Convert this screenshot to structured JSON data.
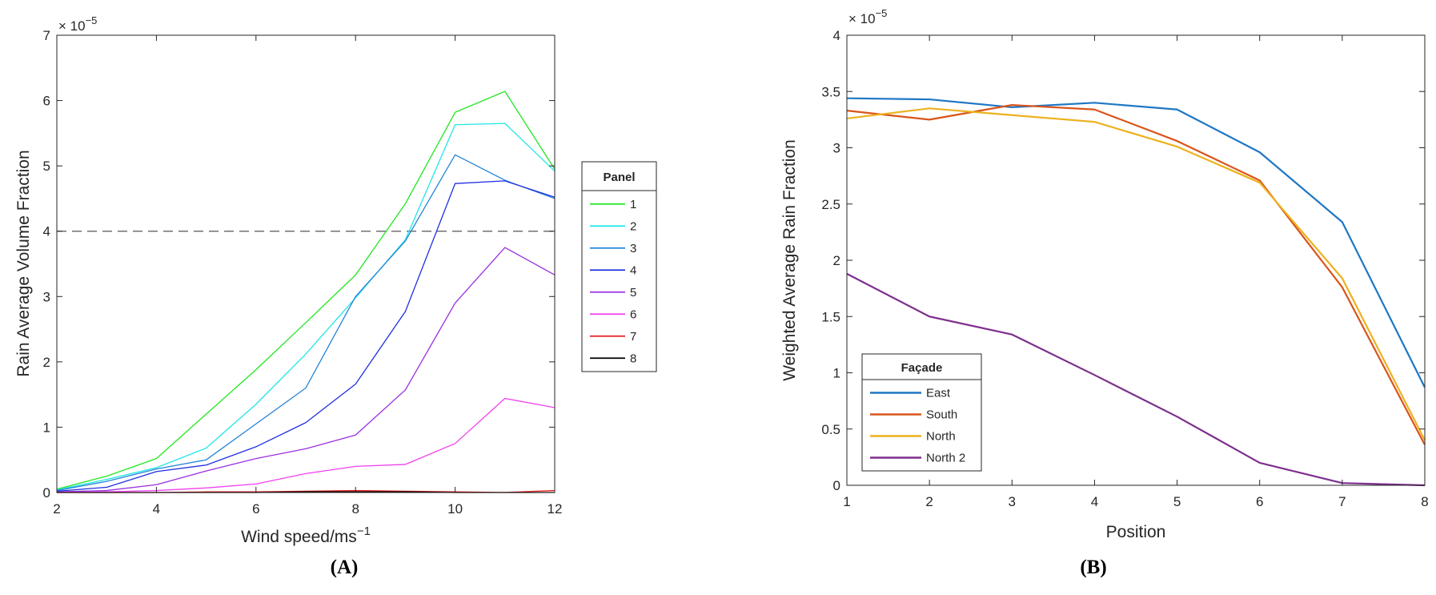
{
  "chart_data": [
    {
      "type": "line",
      "panel_label": "(A)",
      "xlabel": "Wind speed/ms",
      "xlabel_sup": "−1",
      "ylabel": "Rain Average Volume Fraction",
      "exponent_label": "× 10",
      "exponent_sup": "−5",
      "xlim": [
        2,
        12
      ],
      "ylim": [
        0,
        7
      ],
      "xticks": [
        "2",
        "4",
        "6",
        "8",
        "10",
        "12"
      ],
      "yticks": [
        "0",
        "1",
        "2",
        "3",
        "4",
        "5",
        "6",
        "7"
      ],
      "reference_line": {
        "y": 4,
        "style": "dashed"
      },
      "legend": {
        "title": "Panel",
        "placement": "outside-right"
      },
      "x": [
        2,
        3,
        4,
        5,
        6,
        7,
        8,
        9,
        10,
        11,
        12
      ],
      "series": [
        {
          "name": "1",
          "color": "#22e622",
          "values": [
            0.05,
            0.25,
            0.52,
            1.2,
            1.88,
            2.6,
            3.33,
            4.42,
            5.82,
            6.14,
            4.95
          ]
        },
        {
          "name": "2",
          "color": "#22e6e6",
          "values": [
            0.04,
            0.2,
            0.38,
            0.68,
            1.35,
            2.12,
            2.98,
            3.87,
            5.63,
            5.65,
            4.92
          ]
        },
        {
          "name": "3",
          "color": "#2484d8",
          "values": [
            0.03,
            0.17,
            0.36,
            0.5,
            1.05,
            1.6,
            3.0,
            3.85,
            5.17,
            4.78,
            4.5
          ]
        },
        {
          "name": "4",
          "color": "#2030e0",
          "values": [
            0.02,
            0.08,
            0.32,
            0.42,
            0.7,
            1.07,
            1.66,
            2.77,
            4.73,
            4.77,
            4.52
          ]
        },
        {
          "name": "5",
          "color": "#9a30e0",
          "values": [
            0.01,
            0.03,
            0.12,
            0.33,
            0.52,
            0.67,
            0.88,
            1.57,
            2.9,
            3.75,
            3.33
          ]
        },
        {
          "name": "6",
          "color": "#f040f0",
          "values": [
            0.0,
            0.01,
            0.03,
            0.07,
            0.13,
            0.29,
            0.4,
            0.43,
            0.75,
            1.44,
            1.3
          ]
        },
        {
          "name": "7",
          "color": "#e02020",
          "values": [
            0.0,
            0.0,
            0.0,
            0.01,
            0.01,
            0.02,
            0.03,
            0.02,
            0.01,
            0.0,
            0.03
          ]
        },
        {
          "name": "8",
          "color": "#000000",
          "values": [
            0.0,
            0.0,
            0.0,
            0.0,
            0.0,
            0.01,
            0.01,
            0.01,
            0.0,
            0.0,
            0.0
          ]
        }
      ]
    },
    {
      "type": "line",
      "panel_label": "(B)",
      "xlabel": "Position",
      "ylabel": "Weighted Average Rain Fraction",
      "exponent_label": "× 10",
      "exponent_sup": "−5",
      "xlim": [
        1,
        8
      ],
      "ylim": [
        0,
        4
      ],
      "xticks": [
        "1",
        "2",
        "3",
        "4",
        "5",
        "6",
        "7",
        "8"
      ],
      "yticks": [
        "0",
        "0.5",
        "1",
        "1.5",
        "2",
        "2.5",
        "3",
        "3.5",
        "4"
      ],
      "legend": {
        "title": "Façade",
        "placement": "bottom-left"
      },
      "x": [
        1,
        2,
        3,
        4,
        5,
        6,
        7,
        8
      ],
      "series": [
        {
          "name": "East",
          "color": "#1f77c4",
          "values": [
            3.44,
            3.43,
            3.36,
            3.4,
            3.34,
            2.96,
            2.34,
            0.87
          ]
        },
        {
          "name": "South",
          "color": "#d9541a",
          "values": [
            3.33,
            3.25,
            3.38,
            3.34,
            3.06,
            2.71,
            1.76,
            0.36
          ]
        },
        {
          "name": "North",
          "color": "#edb11f",
          "values": [
            3.26,
            3.35,
            3.29,
            3.23,
            3.01,
            2.69,
            1.84,
            0.4
          ]
        },
        {
          "name": "North 2",
          "color": "#7e2f8e",
          "values": [
            1.88,
            1.5,
            1.34,
            0.98,
            0.61,
            0.2,
            0.02,
            0.0
          ]
        }
      ]
    }
  ]
}
